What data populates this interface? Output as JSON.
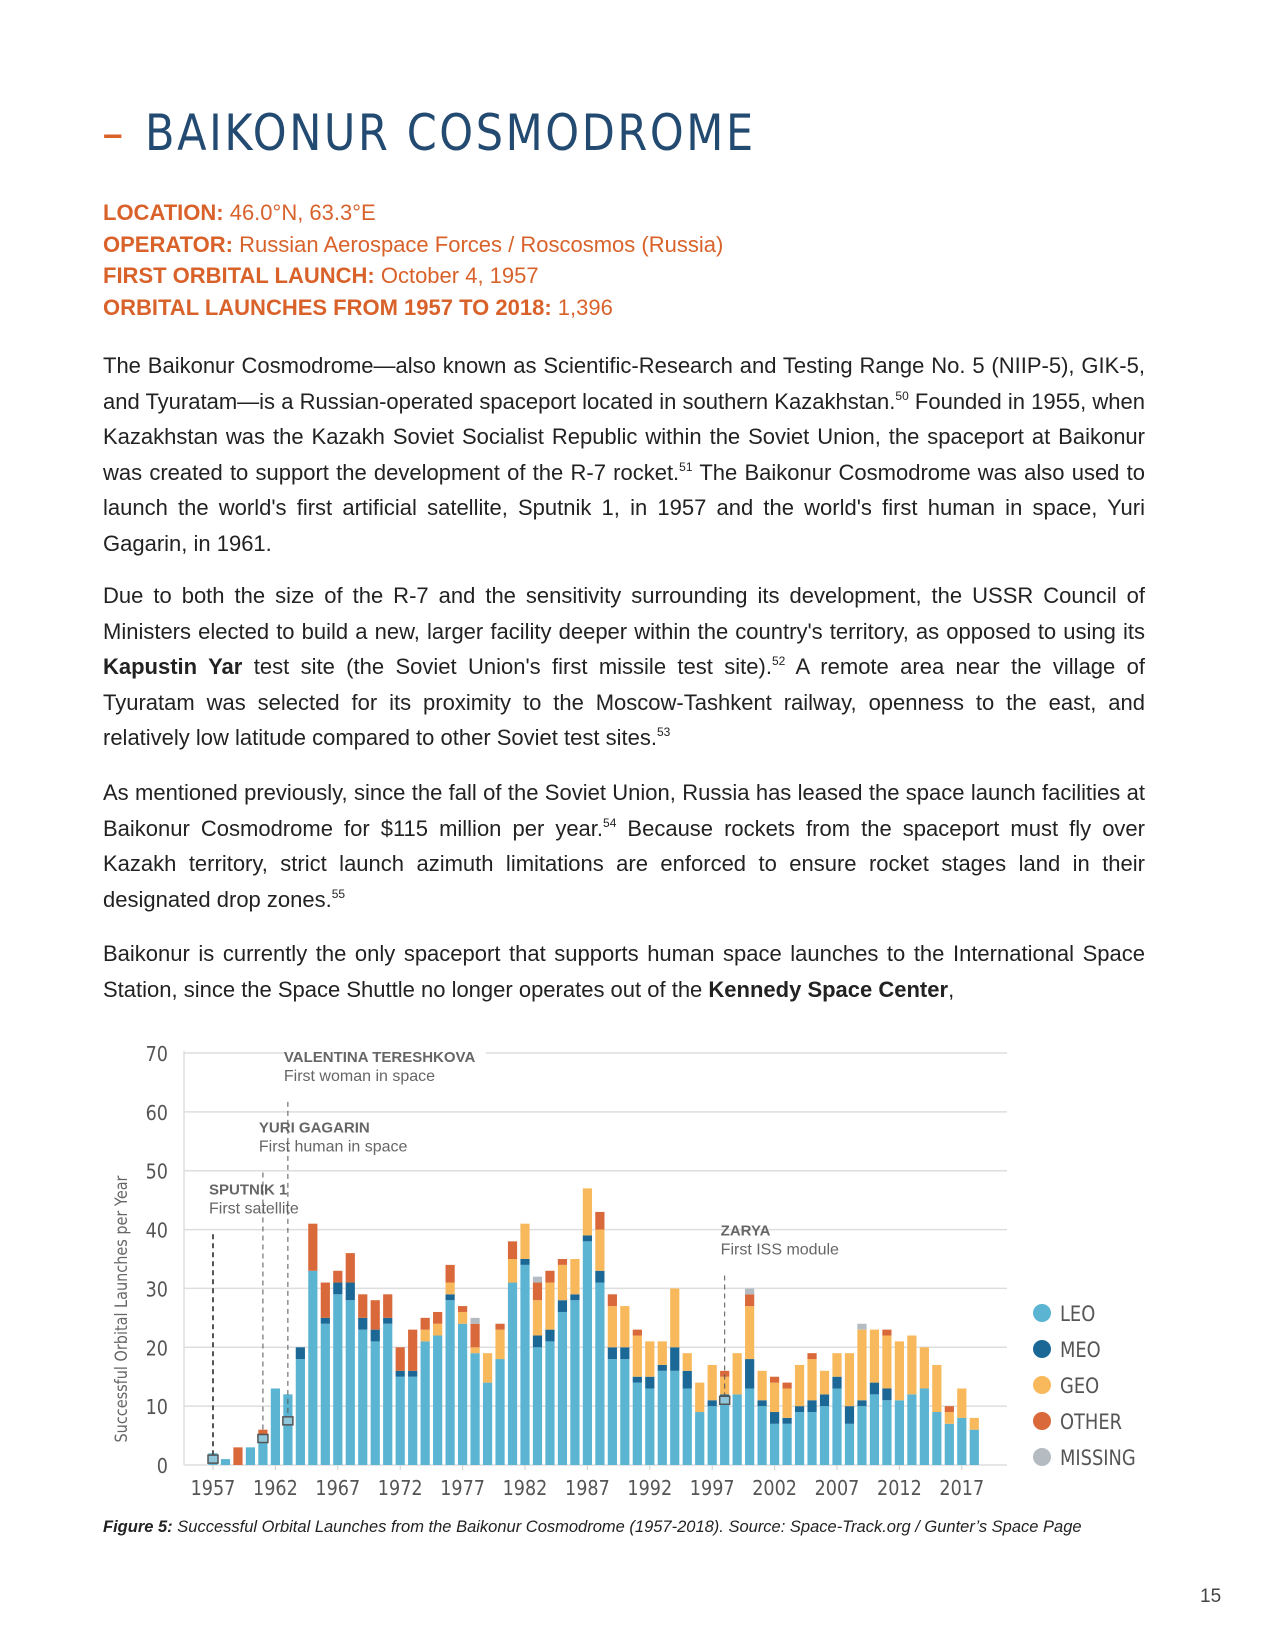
{
  "header": {
    "dash": "–",
    "title": "BAIKONUR COSMODROME",
    "facts": [
      {
        "label": "LOCATION:",
        "value": "46.0°N, 63.3°E"
      },
      {
        "label": "OPERATOR:",
        "value": "Russian Aerospace Forces / Roscosmos (Russia)"
      },
      {
        "label": "FIRST ORBITAL LAUNCH:",
        "value": "October 4, 1957"
      },
      {
        "label": "ORBITAL LAUNCHES FROM 1957 TO 2018:",
        "value": "1,396"
      }
    ]
  },
  "body": {
    "paragraphs": [
      [
        {
          "t": "The Baikonur Cosmodrome—also known as Scientific-Research and Testing Range No. 5 (NIIP-5), GIK-5, and Tyuratam—is a Russian-operated spaceport located in southern Kazakhstan."
        },
        {
          "t": "50",
          "sup": true
        },
        {
          "t": " Founded in 1955, when Kazakhstan was the Kazakh Soviet Socialist Republic within the Soviet Union, the spaceport at Baikonur was created to support the development of the R-7 rocket."
        },
        {
          "t": "51",
          "sup": true
        },
        {
          "t": " The Baikonur Cosmodrome was also used to launch the world's first artificial satellite, Sputnik 1,  in 1957 and the world's first human in space, Yuri Gagarin, in 1961."
        }
      ],
      [
        {
          "t": "Due to both the size of the R-7 and the sensitivity surrounding its development, the USSR Council of Ministers elected to build a new, larger facility deeper within the country's territory, as opposed to using its "
        },
        {
          "t": "Kapustin Yar",
          "b": true
        },
        {
          "t": " test site (the Soviet Union's first missile test site)."
        },
        {
          "t": "52",
          "sup": true
        },
        {
          "t": " A remote area near the village of Tyuratam was selected for its proximity to the Moscow-Tashkent railway, openness to the east, and relatively low latitude compared to other Soviet test sites."
        },
        {
          "t": "53",
          "sup": true
        }
      ],
      [
        {
          "t": "As mentioned previously, since the fall of the Soviet Union, Russia has leased the space launch facilities at Baikonur Cosmodrome for $115 million per year."
        },
        {
          "t": "54",
          "sup": true
        },
        {
          "t": " Because rockets from the spaceport must fly over Kazakh territory, strict launch azimuth limitations are enforced to ensure rocket stages land in their designated drop zones."
        },
        {
          "t": "55",
          "sup": true
        }
      ],
      [
        {
          "t": "Baikonur is currently the only spaceport that supports human space launches to the International Space Station, since the Space Shuttle no longer operates out of the "
        },
        {
          "t": "Kennedy Space Center",
          "b": true
        },
        {
          "t": ","
        }
      ]
    ]
  },
  "chart_data": {
    "type": "bar",
    "stacked": true,
    "title": "",
    "xlabel": "",
    "ylabel": "Successful Orbital Launches per Year",
    "ylim": [
      0,
      70
    ],
    "yticks": [
      0,
      10,
      20,
      30,
      40,
      50,
      60,
      70
    ],
    "xticks": [
      "1957",
      "1962",
      "1967",
      "1972",
      "1977",
      "1982",
      "1987",
      "1992",
      "1997",
      "2002",
      "2007",
      "2012",
      "2017"
    ],
    "grid": true,
    "legend_position": "right",
    "series_names": [
      "LEO",
      "MEO",
      "GEO",
      "OTHER",
      "MISSING"
    ],
    "colors": {
      "LEO": "#5ab4d2",
      "MEO": "#1b6897",
      "GEO": "#f8b85c",
      "OTHER": "#d9693a",
      "MISSING": "#b4bbc1"
    },
    "years": [
      1957,
      1958,
      1959,
      1960,
      1961,
      1962,
      1963,
      1964,
      1965,
      1966,
      1967,
      1968,
      1969,
      1970,
      1971,
      1972,
      1973,
      1974,
      1975,
      1976,
      1977,
      1978,
      1979,
      1980,
      1981,
      1982,
      1983,
      1984,
      1985,
      1986,
      1987,
      1988,
      1989,
      1990,
      1991,
      1992,
      1993,
      1994,
      1995,
      1996,
      1997,
      1998,
      1999,
      2000,
      2001,
      2002,
      2003,
      2004,
      2005,
      2006,
      2007,
      2008,
      2009,
      2010,
      2011,
      2012,
      2013,
      2014,
      2015,
      2016,
      2017,
      2018
    ],
    "values": [
      [
        2,
        0,
        0,
        0,
        0
      ],
      [
        1,
        0,
        0,
        0,
        0
      ],
      [
        0,
        0,
        0,
        3,
        0
      ],
      [
        3,
        0,
        0,
        0,
        0
      ],
      [
        5,
        0,
        0,
        1,
        0
      ],
      [
        13,
        0,
        0,
        0,
        0
      ],
      [
        12,
        0,
        0,
        0,
        0
      ],
      [
        18,
        2,
        0,
        0,
        0
      ],
      [
        33,
        0,
        0,
        8,
        0
      ],
      [
        24,
        1,
        0,
        6,
        0
      ],
      [
        29,
        2,
        0,
        2,
        0
      ],
      [
        28,
        3,
        0,
        5,
        0
      ],
      [
        23,
        2,
        0,
        4,
        0
      ],
      [
        21,
        2,
        0,
        5,
        0
      ],
      [
        24,
        1,
        0,
        4,
        0
      ],
      [
        15,
        1,
        0,
        4,
        0
      ],
      [
        15,
        1,
        0,
        7,
        0
      ],
      [
        21,
        0,
        2,
        2,
        0
      ],
      [
        22,
        0,
        2,
        2,
        0
      ],
      [
        28,
        1,
        2,
        3,
        0
      ],
      [
        24,
        0,
        2,
        1,
        0
      ],
      [
        19,
        0,
        1,
        4,
        1
      ],
      [
        14,
        0,
        5,
        0,
        0
      ],
      [
        18,
        0,
        5,
        1,
        0
      ],
      [
        31,
        0,
        4,
        3,
        0
      ],
      [
        34,
        1,
        6,
        0,
        0
      ],
      [
        20,
        2,
        6,
        3,
        1
      ],
      [
        21,
        2,
        8,
        2,
        0
      ],
      [
        26,
        2,
        6,
        1,
        0
      ],
      [
        28,
        1,
        6,
        0,
        0
      ],
      [
        38,
        1,
        8,
        0,
        0
      ],
      [
        31,
        2,
        7,
        3,
        0
      ],
      [
        18,
        2,
        7,
        2,
        0
      ],
      [
        18,
        2,
        7,
        0,
        0
      ],
      [
        14,
        1,
        7,
        1,
        0
      ],
      [
        13,
        2,
        6,
        0,
        0
      ],
      [
        16,
        1,
        4,
        0,
        0
      ],
      [
        16,
        4,
        10,
        0,
        0
      ],
      [
        13,
        3,
        3,
        0,
        0
      ],
      [
        9,
        0,
        5,
        0,
        0
      ],
      [
        10,
        1,
        6,
        0,
        0
      ],
      [
        11,
        1,
        3,
        1,
        0
      ],
      [
        12,
        0,
        7,
        0,
        0
      ],
      [
        13,
        5,
        9,
        2,
        1
      ],
      [
        10,
        1,
        5,
        0,
        0
      ],
      [
        7,
        2,
        5,
        1,
        0
      ],
      [
        7,
        1,
        5,
        1,
        0
      ],
      [
        9,
        1,
        7,
        0,
        0
      ],
      [
        9,
        2,
        7,
        1,
        0
      ],
      [
        10,
        2,
        4,
        0,
        0
      ],
      [
        13,
        2,
        4,
        0,
        0
      ],
      [
        7,
        3,
        9,
        0,
        0
      ],
      [
        10,
        1,
        12,
        0,
        1
      ],
      [
        12,
        2,
        9,
        0,
        0
      ],
      [
        11,
        2,
        9,
        1,
        0
      ],
      [
        11,
        0,
        10,
        0,
        0
      ],
      [
        12,
        0,
        10,
        0,
        0
      ],
      [
        13,
        0,
        7,
        0,
        0
      ],
      [
        9,
        0,
        8,
        0,
        0
      ],
      [
        7,
        0,
        2,
        1,
        0
      ],
      [
        8,
        0,
        5,
        0,
        0
      ],
      [
        6,
        0,
        2,
        0,
        0
      ]
    ],
    "annotations": [
      {
        "year": 1957,
        "marker_value": 1,
        "title": "SPUTNIK 1",
        "subtitle": "First satellite",
        "label_value": 46
      },
      {
        "year": 1961,
        "marker_value": 4.5,
        "title": "YURI GAGARIN",
        "subtitle": "First human in space",
        "label_value": 56.5
      },
      {
        "year": 1963,
        "marker_value": 7.5,
        "title": "VALENTINA TERESHKOVA",
        "subtitle": "First woman in space",
        "label_value": 68.5
      },
      {
        "year": 1998,
        "marker_value": 11,
        "title": "ZARYA",
        "subtitle": "First ISS module",
        "label_value": 39
      }
    ]
  },
  "caption": {
    "label": "Figure 5:",
    "text": " Successful Orbital Launches from the Baikonur Cosmodrome (1957-2018). Source: Space-Track.org / Gunter’s Space Page"
  },
  "page_number": "15"
}
